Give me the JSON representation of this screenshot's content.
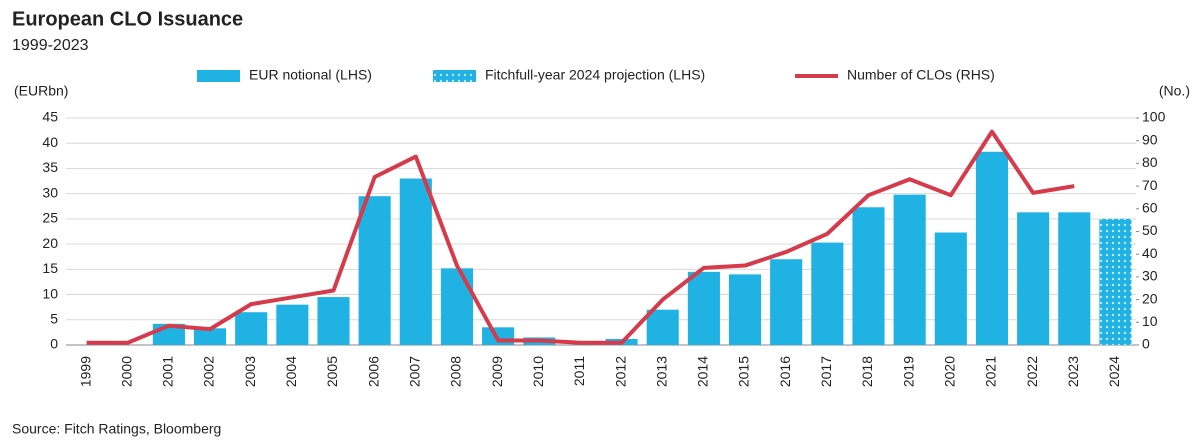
{
  "chart_data": {
    "type": "bar-line",
    "title": "European  CLO Issuance",
    "subtitle": "1999-2023",
    "y_label": "(EURbn)",
    "y2_label": "(No.)",
    "source": "Source: Fitch  Ratings, Bloomberg",
    "categories": [
      "1999",
      "2000",
      "2001",
      "2002",
      "2003",
      "2004",
      "2005",
      "2006",
      "2007",
      "2008",
      "2009",
      "2010",
      "2011",
      "2012",
      "2013",
      "2014",
      "2015",
      "2016",
      "2017",
      "2018",
      "2019",
      "2020",
      "2021",
      "2022",
      "2023",
      "2024"
    ],
    "series": [
      {
        "name": "EUR notional (LHS)",
        "kind": "bar",
        "color": "#1fb2e2",
        "values": [
          0,
          0,
          4.2,
          3.3,
          6.5,
          8,
          9.5,
          29.5,
          33,
          15.2,
          3.5,
          1.5,
          0,
          1.2,
          7,
          14.5,
          14,
          17,
          20.3,
          27.3,
          29.8,
          22.3,
          38.3,
          26.3,
          26.3,
          null
        ]
      },
      {
        "name": "Fitchfull-year 2024 projection (LHS)",
        "kind": "bar",
        "pattern": "dotted",
        "color": "#1fb2e2",
        "values": [
          null,
          null,
          null,
          null,
          null,
          null,
          null,
          null,
          null,
          null,
          null,
          null,
          null,
          null,
          null,
          null,
          null,
          null,
          null,
          null,
          null,
          null,
          null,
          null,
          null,
          25
        ]
      },
      {
        "name": "Number of CLOs (RHS)",
        "kind": "line",
        "axis": "y2",
        "color": "#d63b4b",
        "values": [
          1,
          1,
          8.5,
          7,
          18,
          21,
          24,
          74,
          83,
          35,
          2,
          2,
          1,
          1,
          20,
          34,
          35,
          41,
          49,
          66,
          73,
          66,
          94,
          67,
          70,
          null
        ]
      }
    ],
    "ylim": [
      0,
      45
    ],
    "yticks": [
      0,
      5,
      10,
      15,
      20,
      25,
      30,
      35,
      40,
      45
    ],
    "y2lim": [
      0,
      100
    ],
    "y2ticks": [
      0,
      10,
      20,
      30,
      40,
      50,
      60,
      70,
      80,
      90,
      100
    ],
    "grid": true,
    "legend": "top"
  }
}
